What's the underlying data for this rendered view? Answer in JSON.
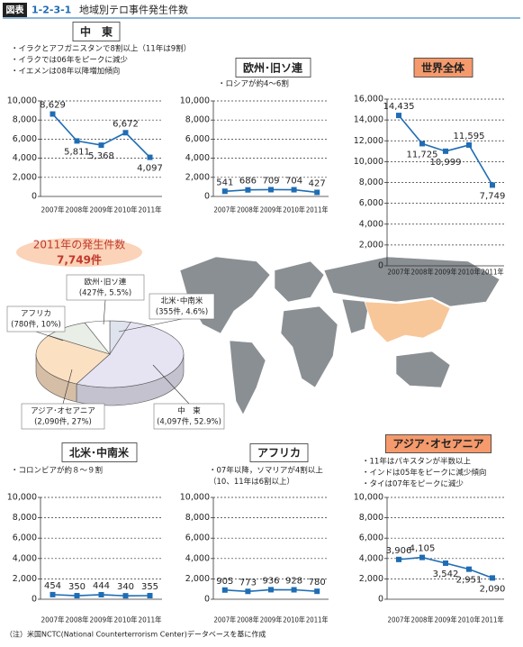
{
  "header": {
    "label": "図表",
    "number": "1-2-3-1",
    "title": "地域別テロ事件発生件数"
  },
  "note": "（注）米国NCTC(National Counterterrorism Center)データベースを基に作成",
  "chart_data": [
    {
      "type": "line",
      "title": "中　東",
      "notes": [
        "・イラクとアフガニスタンで8割以上（11年は9割）",
        "・イラクでは06年をピークに減少",
        "・イエメンは08年以降増加傾向"
      ],
      "categories": [
        "2007年",
        "2008年",
        "2009年",
        "2010年",
        "2011年"
      ],
      "values": [
        8629,
        5811,
        5368,
        6672,
        4097
      ],
      "value_labels": [
        "8,629",
        "5,811",
        "5,368",
        "6,672",
        "4,097"
      ],
      "color": "#1f6db4",
      "ylim": [
        0,
        10000
      ],
      "yticks": [
        0,
        {
          "value": 2000,
          "label": "2,000"
        },
        {
          "value": 4000,
          "label": "4,000"
        },
        {
          "value": 6000,
          "label": "6,000"
        },
        {
          "value": 8000,
          "label": "8,000"
        },
        {
          "value": 10000,
          "label": "10,000"
        }
      ],
      "grid": true
    },
    {
      "type": "line",
      "title": "欧州･旧ソ連",
      "notes": [
        "・ロシアが約4～6割"
      ],
      "categories": [
        "2007年",
        "2008年",
        "2009年",
        "2010年",
        "2011年"
      ],
      "values": [
        541,
        686,
        709,
        704,
        427
      ],
      "color": "#1f6db4",
      "ylim": [
        0,
        10000
      ],
      "yticks": [
        0,
        {
          "value": 2000,
          "label": "2,000"
        },
        {
          "value": 4000,
          "label": "4,000"
        },
        {
          "value": 6000,
          "label": "6,000"
        },
        {
          "value": 8000,
          "label": "8,000"
        },
        {
          "value": 10000,
          "label": "10,000"
        }
      ],
      "grid": true
    },
    {
      "type": "line",
      "title": "世界全体",
      "notes": [],
      "categories": [
        "2007年",
        "2008年",
        "2009年",
        "2010年",
        "2011年"
      ],
      "values": [
        14435,
        11725,
        10999,
        11595,
        7749
      ],
      "value_labels": [
        "14,435",
        "11,725",
        "10,999",
        "11,595",
        "7,749"
      ],
      "color": "#1f6db4",
      "ylim": [
        0,
        16000
      ],
      "yticks": [
        0,
        {
          "value": 2000,
          "label": "2,000"
        },
        {
          "value": 4000,
          "label": "4,000"
        },
        {
          "value": 6000,
          "label": "6,000"
        },
        {
          "value": 8000,
          "label": "8,000"
        },
        {
          "value": 10000,
          "label": "10,000"
        },
        {
          "value": 12000,
          "label": "12,000"
        },
        {
          "value": 14000,
          "label": "14,000"
        },
        {
          "value": 16000,
          "label": "16,000"
        }
      ],
      "grid": true
    },
    {
      "type": "line",
      "title": "北米･中南米",
      "notes": [
        "・コロンビアが約８～９割"
      ],
      "categories": [
        "2007年",
        "2008年",
        "2009年",
        "2010年",
        "2011年"
      ],
      "values": [
        454,
        350,
        444,
        340,
        355
      ],
      "color": "#1f6db4",
      "ylim": [
        0,
        10000
      ],
      "yticks": [
        0,
        {
          "value": 2000,
          "label": "2,000"
        },
        {
          "value": 4000,
          "label": "4,000"
        },
        {
          "value": 6000,
          "label": "6,000"
        },
        {
          "value": 8000,
          "label": "8,000"
        },
        {
          "value": 10000,
          "label": "10,000"
        }
      ],
      "grid": true
    },
    {
      "type": "line",
      "title": "アフリカ",
      "notes": [
        "・07年以降，ソマリアが4割以上",
        "（10、11年は6割以上）"
      ],
      "categories": [
        "2007年",
        "2008年",
        "2009年",
        "2010年",
        "2011年"
      ],
      "values": [
        905,
        773,
        936,
        928,
        780
      ],
      "color": "#1f6db4",
      "ylim": [
        0,
        10000
      ],
      "yticks": [
        0,
        {
          "value": 2000,
          "label": "2,000"
        },
        {
          "value": 4000,
          "label": "4,000"
        },
        {
          "value": 6000,
          "label": "6,000"
        },
        {
          "value": 8000,
          "label": "8,000"
        },
        {
          "value": 10000,
          "label": "10,000"
        }
      ],
      "grid": true
    },
    {
      "type": "line",
      "title": "アジア･オセアニア",
      "notes": [
        "・11年はパキスタンが半数以上",
        "・インドは05年をピークに減少傾向",
        "・タイは07年をピークに減少"
      ],
      "categories": [
        "2007年",
        "2008年",
        "2009年",
        "2010年",
        "2011年"
      ],
      "values": [
        3906,
        4105,
        3542,
        2951,
        2090
      ],
      "value_labels": [
        "3,906",
        "4,105",
        "3,542",
        "2,951",
        "2,090"
      ],
      "color": "#1f6db4",
      "ylim": [
        0,
        10000
      ],
      "yticks": [
        0,
        {
          "value": 2000,
          "label": "2,000"
        },
        {
          "value": 4000,
          "label": "4,000"
        },
        {
          "value": 6000,
          "label": "6,000"
        },
        {
          "value": 8000,
          "label": "8,000"
        },
        {
          "value": 10000,
          "label": "10,000"
        }
      ],
      "grid": true
    },
    {
      "type": "pie",
      "title": "2011年の発生件数",
      "subtitle": "7,749件",
      "categories": [
        "北米･中南米",
        "中　東",
        "アジア･オセアニア",
        "アフリカ",
        "欧州･旧ソ連"
      ],
      "values": [
        355,
        4097,
        2090,
        780,
        427
      ],
      "value_labels": [
        "(355件, 4.6%)",
        "(4,097件, 52.9%)",
        "(2,090件, 27%)",
        "(780件, 10%)",
        "(427件, 5.5%)"
      ],
      "colors": [
        "#dfe3ee",
        "#e6e4f2",
        "#fbe0c2",
        "#e9eee6",
        "#ffffff"
      ]
    }
  ]
}
